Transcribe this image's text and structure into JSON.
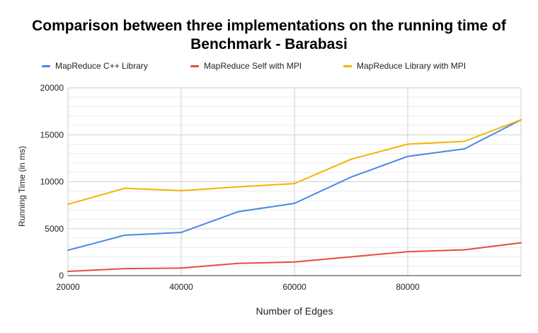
{
  "chart_data": {
    "type": "line",
    "title_lines": [
      "Comparison between three implementations on the running time of",
      "Benchmark - Barabasi"
    ],
    "xlabel": "Number of Edges",
    "ylabel": "Running Time (in ms)",
    "xlim": [
      20000,
      100000
    ],
    "ylim": [
      0,
      20000
    ],
    "x_ticks": [
      "20000",
      "40000",
      "60000",
      "80000"
    ],
    "y_ticks": [
      "0",
      "5000",
      "10000",
      "15000",
      "20000"
    ],
    "grid": true,
    "legend_position": "top",
    "x": [
      20000,
      30000,
      40000,
      50000,
      60000,
      70000,
      80000,
      90000,
      100000
    ],
    "series": [
      {
        "name": "MapReduce C++ Library",
        "color": "#4a86e8",
        "values": [
          2700,
          4300,
          4600,
          6800,
          7700,
          10500,
          12700,
          13500,
          16600
        ]
      },
      {
        "name": "MapReduce Self with MPI",
        "color": "#e84c3d",
        "values": [
          450,
          750,
          800,
          1300,
          1450,
          2000,
          2550,
          2750,
          3500
        ]
      },
      {
        "name": "MapReduce Library with MPI",
        "color": "#f4b400",
        "values": [
          7600,
          9300,
          9050,
          9450,
          9800,
          12400,
          14000,
          14300,
          16600
        ]
      }
    ]
  }
}
